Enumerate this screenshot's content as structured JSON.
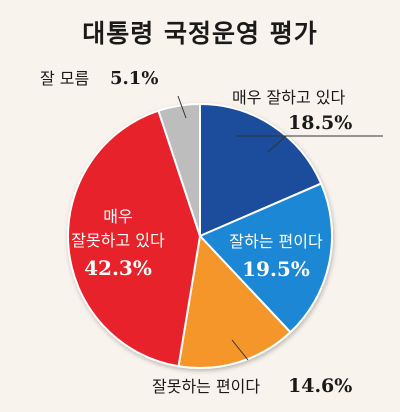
{
  "title": "대통령 국정운영 평가",
  "chart_data": {
    "type": "pie",
    "title": "대통령 국정운영 평가",
    "slices": [
      {
        "label": "매우 잘하고 있다",
        "value": 18.5,
        "value_text": "18.5%",
        "color": "#1b4d9c"
      },
      {
        "label": "잘하는 편이다",
        "value": 19.5,
        "value_text": "19.5%",
        "color": "#1d87d4"
      },
      {
        "label": "잘못하는 편이다",
        "value": 14.6,
        "value_text": "14.6%",
        "color": "#f4962c"
      },
      {
        "label_line1": "매우",
        "label_line2": "잘못하고 있다",
        "value": 42.3,
        "value_text": "42.3%",
        "color": "#e8222c"
      },
      {
        "label": "잘 모름",
        "value": 5.1,
        "value_text": "5.1%",
        "color": "#bdbdbd"
      }
    ]
  }
}
